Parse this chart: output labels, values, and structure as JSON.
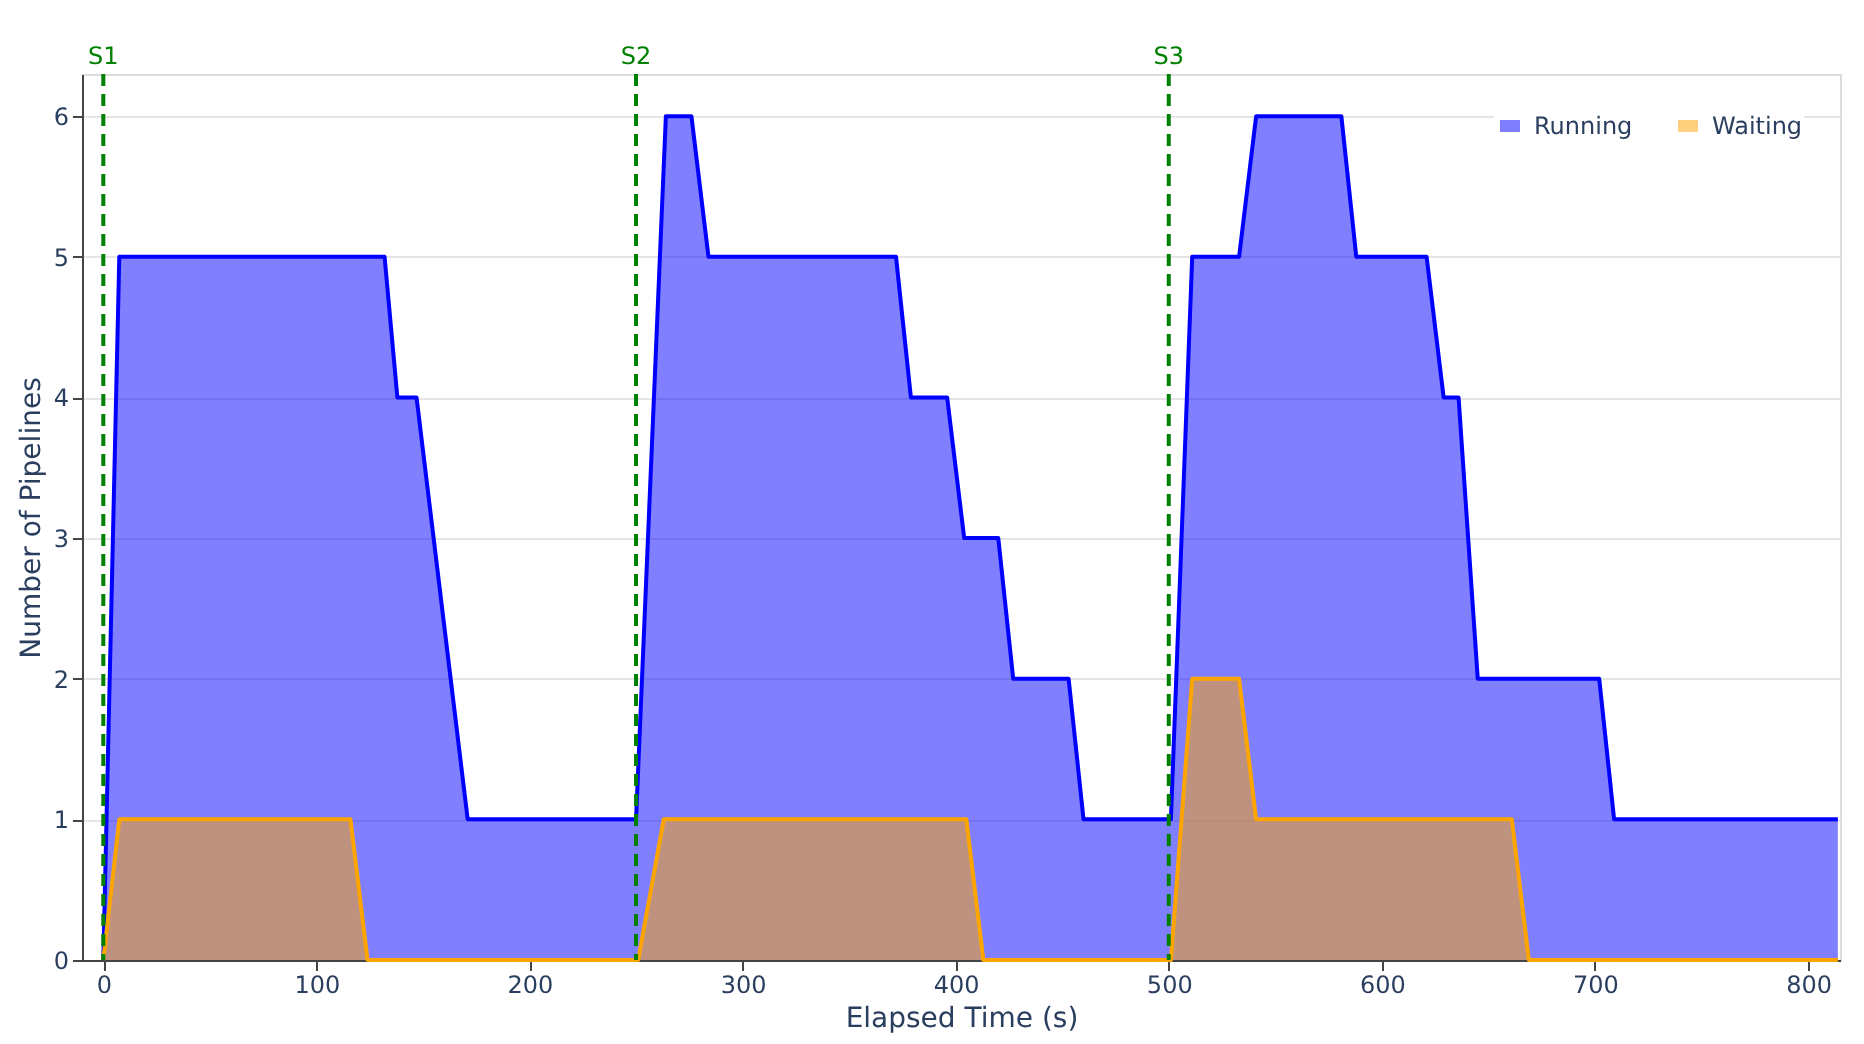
{
  "chart_data": {
    "type": "area",
    "xlabel": "Elapsed Time (s)",
    "ylabel": "Number of Pipelines",
    "series": [
      {
        "name": "Running",
        "color": "#0000ff",
        "x": [
          0,
          7.5,
          132,
          138,
          147,
          171,
          250,
          264,
          276,
          284,
          372,
          379,
          396,
          404,
          420,
          427,
          453,
          460,
          501,
          511,
          533,
          541,
          581,
          588,
          621,
          629,
          636,
          645,
          702,
          709,
          814
        ],
        "values": [
          0,
          5,
          5,
          4,
          4,
          1,
          1,
          6,
          6,
          5,
          5,
          4,
          4,
          3,
          3,
          2,
          2,
          1,
          1,
          5,
          5,
          6,
          6,
          5,
          5,
          4,
          4,
          2,
          2,
          1,
          1
        ]
      },
      {
        "name": "Waiting",
        "color": "#ffa500",
        "x": [
          0,
          7.5,
          116,
          124,
          251,
          263,
          405,
          413,
          501,
          511,
          533,
          541,
          661,
          669,
          814
        ],
        "values": [
          0,
          1,
          1,
          0,
          0,
          1,
          1,
          0,
          0,
          2,
          2,
          1,
          1,
          0,
          0
        ]
      }
    ],
    "xlim": [
      -10,
      815
    ],
    "ylim": [
      0,
      6.3
    ],
    "xticks": [
      0,
      100,
      200,
      300,
      400,
      500,
      600,
      700,
      800
    ],
    "yticks": [
      0,
      1,
      2,
      3,
      4,
      5,
      6
    ],
    "ref_lines": [
      {
        "axis": "x",
        "value": 0,
        "label": "S1",
        "color": "#008000",
        "line_style": "dashed"
      },
      {
        "axis": "x",
        "value": 250,
        "label": "S2",
        "color": "#008000",
        "line_style": "dashed"
      },
      {
        "axis": "x",
        "value": 500,
        "label": "S3",
        "color": "#008000",
        "line_style": "dashed"
      }
    ],
    "grid": "y",
    "legend": "top right",
    "line_style": "solid"
  }
}
